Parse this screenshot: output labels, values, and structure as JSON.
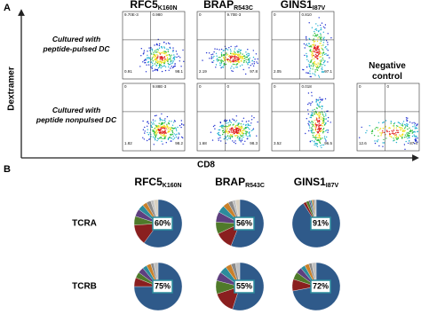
{
  "panel_a": {
    "label": "A",
    "y_axis": "Dextramer",
    "x_axis": "CD8",
    "columns": [
      {
        "name": "RFC5",
        "sub": "K160N"
      },
      {
        "name": "BRAP",
        "sub": "R543C"
      },
      {
        "name": "GINS1",
        "sub": "I87V"
      }
    ],
    "rows": [
      [
        "Cultured with",
        "peptide-pulsed DC"
      ],
      [
        "Cultured with",
        "peptide  nonpulsed DC"
      ]
    ],
    "negative_control": [
      "Negative",
      "control"
    ],
    "plots": [
      {
        "quadrants": [
          "9.70E-3",
          "0.980",
          "0.91",
          "98.1"
        ]
      },
      {
        "quadrants": [
          "0",
          "9.70E-3",
          "2.19",
          "97.8"
        ]
      },
      {
        "quadrants": [
          "0",
          "0.810",
          "2.05",
          "97.1"
        ]
      },
      {
        "quadrants": [
          "0",
          "9.88E-3",
          "1.82",
          "98.2"
        ]
      },
      {
        "quadrants": [
          "0",
          "0",
          "1.68",
          "98.3"
        ]
      },
      {
        "quadrants": [
          "0",
          "0.018",
          "3.52",
          "96.5"
        ]
      },
      {
        "quadrants": [
          "0",
          "0",
          "12.6",
          "87.4"
        ]
      }
    ]
  },
  "panel_b": {
    "label": "B",
    "columns": [
      {
        "name": "RFC5",
        "sub": "K160N"
      },
      {
        "name": "BRAP",
        "sub": "R543C"
      },
      {
        "name": "GINS1",
        "sub": "I87V"
      }
    ],
    "rows": [
      "TCRA",
      "TCRB"
    ],
    "colors": [
      "#2f5a8a",
      "#8a1f1f",
      "#4f7a2a",
      "#5e3f7f",
      "#2c8c9c",
      "#c9802a",
      "#8a8a8a",
      "#c0c0c0",
      "#d8d0c0"
    ],
    "pies": [
      {
        "values": [
          60,
          14,
          6,
          5,
          4,
          3,
          3,
          2,
          3
        ],
        "value_label": "60%"
      },
      {
        "values": [
          56,
          12,
          8,
          7,
          5,
          4,
          3,
          2,
          3
        ],
        "value_label": "56%"
      },
      {
        "values": [
          91,
          2,
          2,
          1,
          1,
          1,
          1,
          1
        ],
        "value_label": "91%"
      },
      {
        "values": [
          75,
          6,
          4,
          4,
          3,
          3,
          2,
          3
        ],
        "value_label": "75%"
      },
      {
        "values": [
          55,
          15,
          9,
          6,
          5,
          4,
          3,
          3
        ],
        "value_label": "55%"
      },
      {
        "values": [
          72,
          8,
          5,
          4,
          3,
          3,
          2,
          3
        ],
        "value_label": "72%"
      }
    ]
  }
}
